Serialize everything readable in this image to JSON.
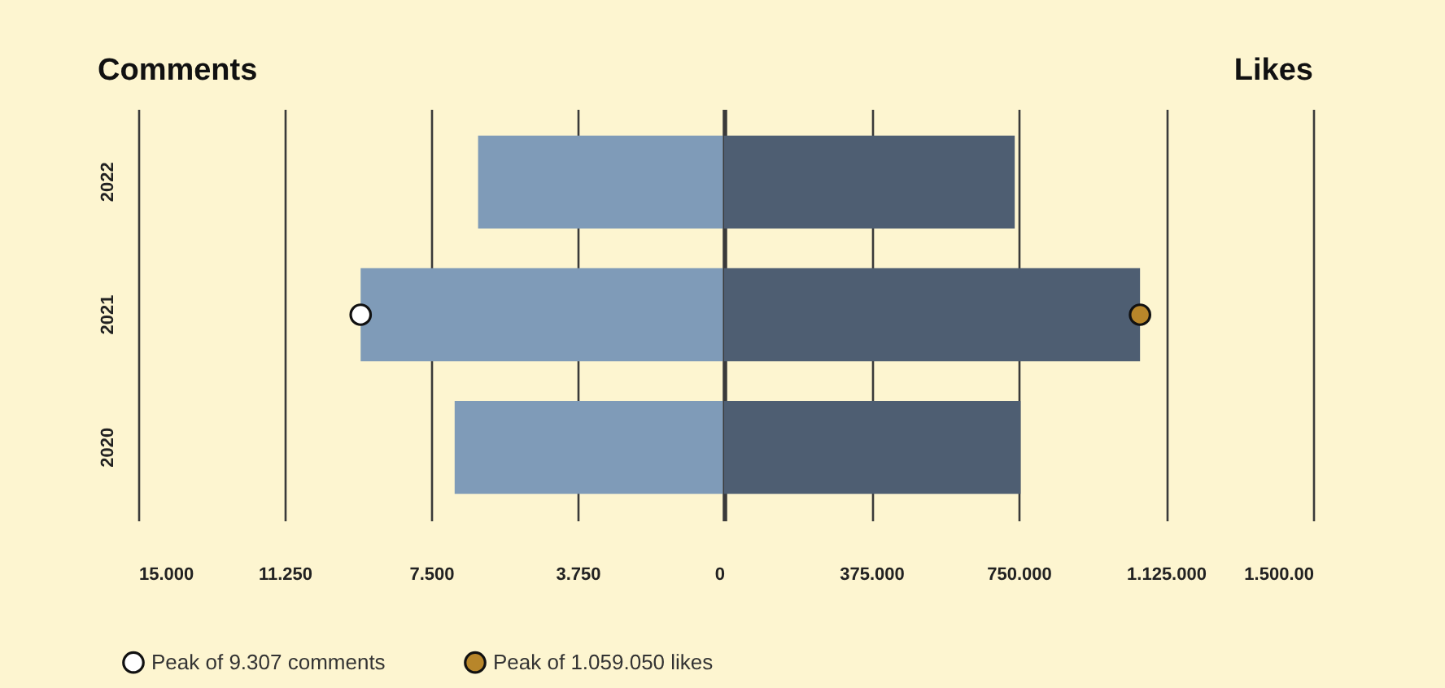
{
  "chart_data": [
    {
      "type": "bar",
      "orientation": "horizontal",
      "title": "Comments",
      "categories": [
        "2022",
        "2021",
        "2020"
      ],
      "series": [
        {
          "color": "#7f9bb8",
          "values": [
            6300,
            9307,
            6900
          ]
        },
        {
          "name": "Peak of 9.307 comments",
          "type": "scatter",
          "color": "#ffffff",
          "values": [
            null,
            9307,
            null
          ]
        }
      ],
      "xlim": [
        15000,
        0
      ],
      "xticks": [
        {
          "value": 15000,
          "label": "15.000"
        },
        {
          "value": 11250,
          "label": "11.250"
        },
        {
          "value": 7500,
          "label": "7.500"
        },
        {
          "value": 3750,
          "label": "3.750"
        },
        0
      ],
      "grid": "x",
      "legend": "bottom left",
      "marker": "circle"
    },
    {
      "type": "bar",
      "orientation": "horizontal",
      "title": "Likes",
      "categories": [
        "2022",
        "2021",
        "2020"
      ],
      "series": [
        {
          "color": "#4e5e72",
          "values": [
            740000,
            1059050,
            755000
          ]
        },
        {
          "name": "Peak of 1.059.050 likes",
          "type": "scatter",
          "color": "#b8862a",
          "values": [
            null,
            1059050,
            null
          ]
        }
      ],
      "xlim": [
        0,
        1500000
      ],
      "xticks": [
        {
          "value": 0,
          "label": null
        },
        {
          "value": 375000,
          "label": "375.000"
        },
        {
          "value": 750000,
          "label": "750.000"
        },
        {
          "value": 1125000,
          "label": "1.125.000"
        },
        {
          "value": 1500000,
          "label": "1.500.00"
        }
      ],
      "grid": "x",
      "legend": "bottom left",
      "marker": "circle",
      "tick_labels": "x"
    }
  ]
}
